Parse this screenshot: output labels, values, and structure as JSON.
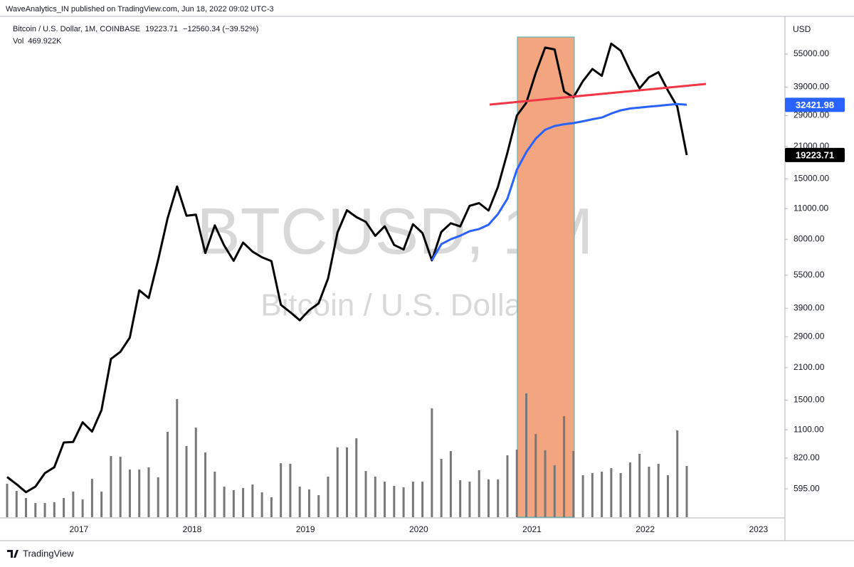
{
  "header": {
    "published": "WaveAnalytics_IN published on TradingView.com, Jun 18, 2022 09:02 UTC-3"
  },
  "chart_data": {
    "type": "line",
    "title": "Bitcoin / U.S. Dollar, 1M, COINBASE",
    "change": "−12560.34 (−39.52%)",
    "watermark": "BTCUSD, 1M",
    "watermark_subtitle": "Bitcoin / U.S. Dollar",
    "y_axis_label": "USD",
    "log_scale": true,
    "categories": [
      null,
      null,
      null,
      null,
      null,
      null,
      null,
      "2017",
      null,
      null,
      null,
      null,
      null,
      null,
      null,
      null,
      null,
      null,
      null,
      "2018",
      null,
      null,
      null,
      null,
      null,
      null,
      null,
      null,
      null,
      null,
      null,
      "2019",
      null,
      null,
      null,
      null,
      null,
      null,
      null,
      null,
      null,
      null,
      null,
      "2020",
      null,
      null,
      null,
      null,
      null,
      null,
      null,
      null,
      null,
      null,
      null,
      "2021",
      null,
      null,
      null,
      null,
      null,
      null,
      null,
      null,
      null,
      null,
      null,
      "2022",
      null,
      null,
      null,
      null,
      null,
      null,
      null,
      null,
      null,
      null,
      null,
      "2023",
      null,
      null,
      null,
      null
    ],
    "series": [
      {
        "color": "#000000",
        "values": [
          673,
          624,
          575,
          609,
          701,
          745,
          964,
          970,
          1190,
          1080,
          1350,
          2300,
          2480,
          2875,
          4700,
          4340,
          6450,
          9950,
          13860,
          10220,
          10330,
          6930,
          9240,
          7490,
          6390,
          7730,
          7030,
          6630,
          6370,
          4040,
          3740,
          3440,
          3820,
          4100,
          5320,
          8570,
          10820,
          10080,
          9590,
          8290,
          9150,
          7540,
          7190,
          9350,
          8540,
          6420,
          8630,
          9450,
          9140,
          11330,
          11650,
          10780,
          13800,
          19700,
          28990,
          33110,
          45200,
          58800,
          57700,
          37300,
          35040,
          41490,
          47100,
          43820,
          61300,
          56950,
          46210,
          38480,
          43160,
          45540,
          37640,
          31800,
          19223.71,
          null,
          null,
          null,
          null,
          null,
          null,
          null,
          null,
          null,
          null,
          null
        ]
      },
      {
        "color": "#2962ff",
        "values": [
          null,
          null,
          null,
          null,
          null,
          null,
          null,
          null,
          null,
          null,
          null,
          null,
          null,
          null,
          null,
          null,
          null,
          null,
          null,
          null,
          null,
          null,
          null,
          null,
          null,
          null,
          null,
          null,
          null,
          null,
          null,
          null,
          null,
          null,
          null,
          null,
          null,
          null,
          null,
          null,
          null,
          null,
          null,
          null,
          null,
          6420,
          7600,
          8000,
          8300,
          8700,
          8900,
          9300,
          10400,
          12200,
          16500,
          19800,
          22800,
          25000,
          26000,
          26500,
          26800,
          27300,
          27900,
          28400,
          29600,
          30600,
          31200,
          31500,
          31800,
          32100,
          32400,
          32700,
          32421.98,
          null,
          null,
          null,
          null,
          null,
          null,
          null,
          null,
          null,
          null,
          null
        ]
      }
    ],
    "ylim": [
      443,
      77300
    ],
    "yticks": [
      {
        "value": 595,
        "label": "595.00"
      },
      {
        "value": 820,
        "label": "820.00"
      },
      {
        "value": 1100,
        "label": "1100.00"
      },
      {
        "value": 1500,
        "label": "1500.00"
      },
      {
        "value": 2100,
        "label": "2100.00"
      },
      {
        "value": 2900,
        "label": "2900.00"
      },
      {
        "value": 3900,
        "label": "3900.00"
      },
      {
        "value": 5500,
        "label": "5500.00"
      },
      {
        "value": 8000,
        "label": "8000.00"
      },
      {
        "value": 11000,
        "label": "11000.00"
      },
      {
        "value": 15000,
        "label": "15000.00"
      },
      {
        "value": 21000,
        "label": "21000.00"
      },
      {
        "value": 29000,
        "label": "29000.00"
      },
      {
        "value": 39000,
        "label": "39000.00"
      },
      {
        "value": 55000,
        "label": "55000.00"
      }
    ],
    "volume": {
      "name": "Vol",
      "last_value_label": "469.922K",
      "color": "#787878",
      "ylim": [
        0,
        1240
      ],
      "values": [
        307,
        241,
        176,
        130,
        130,
        137,
        176,
        235,
        163,
        352,
        235,
        561,
        555,
        437,
        437,
        457,
        366,
        783,
        1083,
        653,
        822,
        594,
        418,
        281,
        248,
        268,
        300,
        228,
        183,
        496,
        490,
        281,
        255,
        202,
        372,
        640,
        640,
        724,
        424,
        372,
        326,
        287,
        274,
        326,
        326,
        998,
        535,
        607,
        339,
        326,
        431,
        346,
        346,
        568,
        620,
        1136,
        764,
        614,
        477,
        927,
        607,
        385,
        405,
        418,
        450,
        405,
        503,
        581,
        463,
        490,
        385,
        796,
        469.922,
        null,
        null,
        null,
        null,
        null,
        null,
        null,
        null,
        null,
        null,
        null
      ]
    }
  },
  "footer": {
    "brand": "TradingView"
  }
}
